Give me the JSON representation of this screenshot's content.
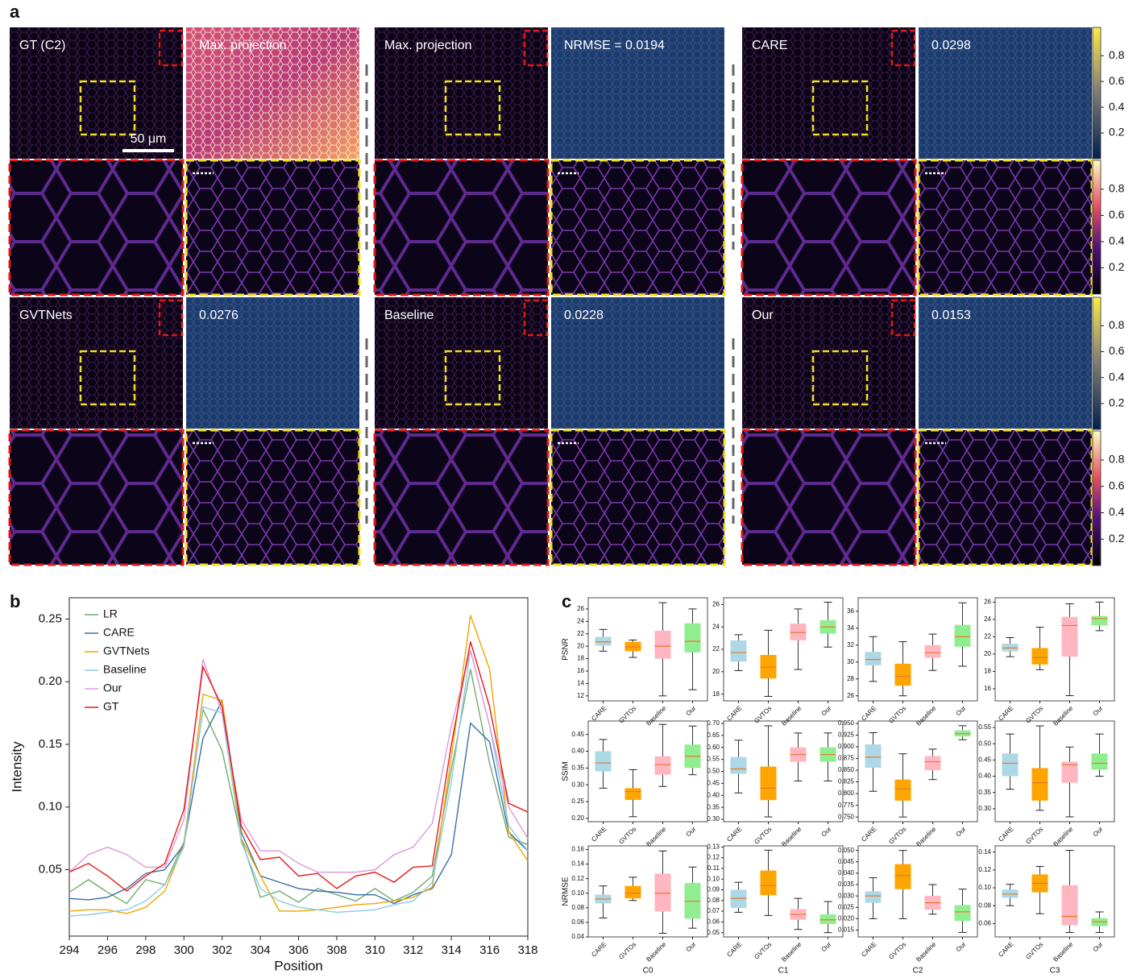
{
  "panel_labels": [
    "a",
    "b",
    "c"
  ],
  "panel_a": {
    "panels": [
      {
        "left": "GT (C2)",
        "right": "Max. projection"
      },
      {
        "left": "Max. projection",
        "right": "NRMSE = 0.0194"
      },
      {
        "left": "CARE",
        "right": "0.0298"
      },
      {
        "left": "GVTNets",
        "right": "0.0276"
      },
      {
        "left": "Baseline",
        "right": "0.0228"
      },
      {
        "left": "Our",
        "right": "0.0153"
      }
    ],
    "scale_bar": "50 μm",
    "colorbars": [
      {
        "cmap": "cividis",
        "lim": [
          0,
          1.02
        ],
        "ticks": [
          0.2,
          0.4,
          0.6,
          0.8
        ]
      },
      {
        "cmap": "magma",
        "lim": [
          0,
          1.02
        ],
        "ticks": [
          0.2,
          0.4,
          0.6,
          0.8
        ]
      },
      {
        "cmap": "cividis",
        "lim": [
          0,
          1.02
        ],
        "ticks": [
          0.2,
          0.4,
          0.6,
          0.8
        ]
      },
      {
        "cmap": "magma",
        "lim": [
          0,
          1.02
        ],
        "ticks": [
          0.2,
          0.4,
          0.6,
          0.8
        ]
      }
    ]
  },
  "chart_data": [
    {
      "type": "line",
      "x": [
        294,
        295,
        296,
        297,
        298,
        299,
        300,
        301,
        302,
        303,
        304,
        305,
        306,
        307,
        308,
        309,
        310,
        311,
        312,
        313,
        314,
        315,
        316,
        317,
        318
      ],
      "xlim": [
        294,
        318
      ],
      "xticks": [
        294,
        296,
        298,
        300,
        302,
        304,
        306,
        308,
        310,
        312,
        314,
        316,
        318
      ],
      "ylim": [
        -0.003,
        0.267
      ],
      "yticks": [
        0.05,
        {
          "value": 0.1,
          "label": "0.10"
        },
        0.15,
        {
          "value": 0.2,
          "label": "0.20"
        },
        0.25
      ],
      "xlabel": "Position",
      "ylabel": "Intensity",
      "legend": "upper left",
      "series": [
        {
          "name": "LR",
          "color": "#6fae6f",
          "values": [
            0.032,
            0.042,
            0.032,
            0.023,
            0.042,
            0.038,
            0.072,
            0.178,
            0.145,
            0.075,
            0.028,
            0.033,
            0.024,
            0.035,
            0.03,
            0.025,
            0.035,
            0.025,
            0.032,
            0.045,
            0.13,
            0.21,
            0.135,
            0.076,
            0.07
          ]
        },
        {
          "name": "CARE",
          "color": "#3a6fa8",
          "values": [
            0.027,
            0.026,
            0.028,
            0.035,
            0.047,
            0.05,
            0.07,
            0.155,
            0.185,
            0.08,
            0.045,
            0.04,
            0.035,
            0.033,
            0.032,
            0.03,
            0.03,
            0.023,
            0.03,
            0.035,
            0.062,
            0.167,
            0.152,
            0.08,
            0.065
          ]
        },
        {
          "name": "GVTNets",
          "color": "#f0a500",
          "values": [
            0.017,
            0.018,
            0.018,
            0.015,
            0.02,
            0.033,
            0.07,
            0.19,
            0.185,
            0.075,
            0.045,
            0.017,
            0.017,
            0.018,
            0.02,
            0.022,
            0.023,
            0.025,
            0.028,
            0.036,
            0.14,
            0.253,
            0.21,
            0.08,
            0.057
          ]
        },
        {
          "name": "Baseline",
          "color": "#8ecae6",
          "values": [
            0.013,
            0.014,
            0.016,
            0.018,
            0.025,
            0.038,
            0.068,
            0.18,
            0.175,
            0.072,
            0.035,
            0.025,
            0.02,
            0.018,
            0.016,
            0.017,
            0.018,
            0.022,
            0.025,
            0.04,
            0.12,
            0.225,
            0.165,
            0.085,
            0.065
          ]
        },
        {
          "name": "Our",
          "color": "#dd99dd",
          "values": [
            0.048,
            0.062,
            0.068,
            0.062,
            0.052,
            0.052,
            0.09,
            0.218,
            0.175,
            0.09,
            0.065,
            0.065,
            0.055,
            0.048,
            0.048,
            0.048,
            0.05,
            0.062,
            0.068,
            0.087,
            0.165,
            0.225,
            0.165,
            0.1,
            0.075
          ]
        },
        {
          "name": "GT",
          "color": "#e81818",
          "values": [
            0.048,
            0.055,
            0.045,
            0.033,
            0.045,
            0.055,
            0.098,
            0.212,
            0.18,
            0.085,
            0.058,
            0.06,
            0.045,
            0.047,
            0.035,
            0.045,
            0.048,
            0.04,
            0.052,
            0.053,
            0.15,
            0.232,
            0.18,
            0.103,
            0.096
          ]
        }
      ]
    },
    {
      "type": "box",
      "ylabel": "PSNR",
      "categories": [
        "CARE",
        "GVTOs",
        "Baseline",
        "Our"
      ],
      "colors": [
        "#add8e6",
        "#ffa500",
        "#ffb6c1",
        "#90ee90"
      ],
      "median_color": "#e8772e",
      "ylim": [
        11.2,
        27.8
      ],
      "yticks": [
        12,
        14,
        16,
        18,
        20,
        22,
        24,
        26
      ],
      "boxes": [
        {
          "low": 19.2,
          "q1": 20.1,
          "median": 20.7,
          "q3": 21.5,
          "high": 22.7
        },
        {
          "low": 18.2,
          "q1": 19.2,
          "median": 19.9,
          "q3": 20.7,
          "high": 21.0
        },
        {
          "low": 12,
          "q1": 18,
          "median": 20,
          "q3": 22.5,
          "high": 27
        },
        {
          "low": 13,
          "q1": 19,
          "median": 20.8,
          "q3": 23.7,
          "high": 26
        }
      ]
    },
    {
      "type": "box",
      "categories": [
        "CARE",
        "GVTOs",
        "Baseline",
        "Our"
      ],
      "colors": [
        "#add8e6",
        "#ffa500",
        "#ffb6c1",
        "#90ee90"
      ],
      "median_color": "#e8772e",
      "ylim": [
        17.4,
        26.6
      ],
      "yticks": [
        18,
        20,
        22,
        24,
        26
      ],
      "boxes": [
        {
          "low": 20.1,
          "q1": 20.9,
          "median": 21.7,
          "q3": 22.8,
          "high": 23.3
        },
        {
          "low": 17.8,
          "q1": 19.4,
          "median": 20.4,
          "q3": 21.5,
          "high": 23.7
        },
        {
          "low": 20.2,
          "q1": 22.8,
          "median": 23.5,
          "q3": 24.3,
          "high": 25.6
        },
        {
          "low": 22.2,
          "q1": 23.4,
          "median": 24.0,
          "q3": 24.6,
          "high": 26.2
        }
      ]
    },
    {
      "type": "box",
      "categories": [
        "CARE",
        "GVTOs",
        "Baseline",
        "Our"
      ],
      "colors": [
        "#add8e6",
        "#ffa500",
        "#ffb6c1",
        "#90ee90"
      ],
      "median_color": "#e8772e",
      "ylim": [
        25.4,
        37.6
      ],
      "yticks": [
        26,
        28,
        30,
        32,
        34,
        36
      ],
      "boxes": [
        {
          "low": 27.7,
          "q1": 29.6,
          "median": 30.3,
          "q3": 31.2,
          "high": 33.0
        },
        {
          "low": 26.0,
          "q1": 27.2,
          "median": 28.3,
          "q3": 29.8,
          "high": 32.4
        },
        {
          "low": 29.0,
          "q1": 30.5,
          "median": 31.1,
          "q3": 32.0,
          "high": 33.3
        },
        {
          "low": 29.5,
          "q1": 31.8,
          "median": 33.0,
          "q3": 34.4,
          "high": 37.0
        }
      ]
    },
    {
      "type": "box",
      "categories": [
        "CARE",
        "GVTOs",
        "Baseline",
        "Our"
      ],
      "colors": [
        "#add8e6",
        "#ffa500",
        "#ffb6c1",
        "#90ee90"
      ],
      "median_color": "#e8772e",
      "ylim": [
        14.6,
        26.5
      ],
      "yticks": [
        16,
        18,
        20,
        22,
        24,
        26
      ],
      "boxes": [
        {
          "low": 19.7,
          "q1": 20.3,
          "median": 20.7,
          "q3": 21.2,
          "high": 21.9
        },
        {
          "low": 18.2,
          "q1": 18.8,
          "median": 19.6,
          "q3": 20.7,
          "high": 23.1
        },
        {
          "low": 15.2,
          "q1": 19.7,
          "median": 23.3,
          "q3": 24.3,
          "high": 25.8
        },
        {
          "low": 22.7,
          "q1": 23.3,
          "median": 24.1,
          "q3": 24.4,
          "high": 26.0
        }
      ]
    },
    {
      "type": "box",
      "ylabel": "SSIM",
      "categories": [
        "CARE",
        "GVTOs",
        "Baseline",
        "Our"
      ],
      "colors": [
        "#add8e6",
        "#ffa500",
        "#ffb6c1",
        "#90ee90"
      ],
      "median_color": "#e8772e",
      "ylim": [
        0.19,
        0.49
      ],
      "yticks": [
        {
          "value": 0.2,
          "label": "0.20"
        },
        0.25,
        {
          "value": 0.3,
          "label": "0.30"
        },
        0.35,
        {
          "value": 0.4,
          "label": "0.40"
        },
        0.45
      ],
      "boxes": [
        {
          "low": 0.29,
          "q1": 0.34,
          "median": 0.365,
          "q3": 0.4,
          "high": 0.435
        },
        {
          "low": 0.205,
          "q1": 0.255,
          "median": 0.28,
          "q3": 0.29,
          "high": 0.345
        },
        {
          "low": 0.295,
          "q1": 0.33,
          "median": 0.36,
          "q3": 0.385,
          "high": 0.48
        },
        {
          "low": 0.33,
          "q1": 0.35,
          "median": 0.385,
          "q3": 0.42,
          "high": 0.475
        }
      ]
    },
    {
      "type": "box",
      "categories": [
        "CARE",
        "GVTOs",
        "Baseline",
        "Our"
      ],
      "colors": [
        "#add8e6",
        "#ffa500",
        "#ffb6c1",
        "#90ee90"
      ],
      "median_color": "#e8772e",
      "ylim": [
        0.29,
        0.71
      ],
      "yticks": [
        {
          "value": 0.3,
          "label": "0.30"
        },
        0.35,
        {
          "value": 0.4,
          "label": "0.40"
        },
        0.45,
        {
          "value": 0.5,
          "label": "0.50"
        },
        0.55,
        {
          "value": 0.6,
          "label": "0.60"
        },
        0.65,
        {
          "value": 0.7,
          "label": "0.70"
        }
      ],
      "boxes": [
        {
          "low": 0.41,
          "q1": 0.49,
          "median": 0.51,
          "q3": 0.56,
          "high": 0.63
        },
        {
          "low": 0.31,
          "q1": 0.38,
          "median": 0.43,
          "q3": 0.52,
          "high": 0.69
        },
        {
          "low": 0.46,
          "q1": 0.54,
          "median": 0.57,
          "q3": 0.6,
          "high": 0.66
        },
        {
          "low": 0.46,
          "q1": 0.54,
          "median": 0.57,
          "q3": 0.6,
          "high": 0.66
        }
      ]
    },
    {
      "type": "box",
      "categories": [
        "CARE",
        "GVTOs",
        "Baseline",
        "Our"
      ],
      "colors": [
        "#add8e6",
        "#ffa500",
        "#ffb6c1",
        "#90ee90"
      ],
      "median_color": "#e8772e",
      "ylim": [
        0.74,
        0.955
      ],
      "yticks": [
        {
          "value": 0.75,
          "label": "0.750"
        },
        {
          "value": 0.775,
          "label": "0.775"
        },
        {
          "value": 0.8,
          "label": "0.800"
        },
        {
          "value": 0.825,
          "label": "0.825"
        },
        {
          "value": 0.85,
          "label": "0.850"
        },
        {
          "value": 0.875,
          "label": "0.875"
        },
        {
          "value": 0.9,
          "label": "0.900"
        },
        {
          "value": 0.925,
          "label": "0.925"
        },
        {
          "value": 0.95,
          "label": "0.950"
        }
      ],
      "boxes": [
        {
          "low": 0.805,
          "q1": 0.855,
          "median": 0.878,
          "q3": 0.905,
          "high": 0.93
        },
        {
          "low": 0.75,
          "q1": 0.785,
          "median": 0.81,
          "q3": 0.83,
          "high": 0.885
        },
        {
          "low": 0.83,
          "q1": 0.85,
          "median": 0.868,
          "q3": 0.88,
          "high": 0.895
        },
        {
          "low": 0.915,
          "q1": 0.922,
          "median": 0.928,
          "q3": 0.935,
          "high": 0.945
        }
      ]
    },
    {
      "type": "box",
      "categories": [
        "CARE",
        "GVTOs",
        "Baseline",
        "Our"
      ],
      "colors": [
        "#add8e6",
        "#ffa500",
        "#ffb6c1",
        "#90ee90"
      ],
      "median_color": "#e8772e",
      "ylim": [
        0.26,
        0.57
      ],
      "yticks": [
        {
          "value": 0.3,
          "label": "0.30"
        },
        0.35,
        {
          "value": 0.4,
          "label": "0.40"
        },
        0.45,
        {
          "value": 0.5,
          "label": "0.50"
        },
        0.55
      ],
      "boxes": [
        {
          "low": 0.36,
          "q1": 0.4,
          "median": 0.44,
          "q3": 0.47,
          "high": 0.53
        },
        {
          "low": 0.295,
          "q1": 0.325,
          "median": 0.38,
          "q3": 0.425,
          "high": 0.555
        },
        {
          "low": 0.275,
          "q1": 0.38,
          "median": 0.435,
          "q3": 0.445,
          "high": 0.49
        },
        {
          "low": 0.4,
          "q1": 0.42,
          "median": 0.44,
          "q3": 0.47,
          "high": 0.53
        }
      ]
    },
    {
      "type": "box",
      "ylabel": "NRMSE",
      "xlabel": "C0",
      "categories": [
        "CARE",
        "GVTOs",
        "Baseline",
        "Our"
      ],
      "colors": [
        "#add8e6",
        "#ffa500",
        "#ffb6c1",
        "#90ee90"
      ],
      "median_color": "#e8772e",
      "ylim": [
        0.04,
        0.165
      ],
      "yticks": [
        0.04,
        0.06,
        0.08,
        {
          "value": 0.1,
          "label": "0.10"
        },
        0.12,
        0.14,
        0.16
      ],
      "boxes": [
        {
          "low": 0.066,
          "q1": 0.086,
          "median": 0.092,
          "q3": 0.098,
          "high": 0.11
        },
        {
          "low": 0.09,
          "q1": 0.093,
          "median": 0.1,
          "q3": 0.11,
          "high": 0.122
        },
        {
          "low": 0.045,
          "q1": 0.075,
          "median": 0.1,
          "q3": 0.127,
          "high": 0.158
        },
        {
          "low": 0.052,
          "q1": 0.065,
          "median": 0.089,
          "q3": 0.114,
          "high": 0.136
        }
      ]
    },
    {
      "type": "box",
      "xlabel": "C1",
      "categories": [
        "CARE",
        "GVTOs",
        "Baseline",
        "Our"
      ],
      "colors": [
        "#add8e6",
        "#ffa500",
        "#ffb6c1",
        "#90ee90"
      ],
      "median_color": "#e8772e",
      "ylim": [
        0.046,
        0.131
      ],
      "yticks": [
        0.05,
        0.06,
        0.07,
        0.08,
        0.09,
        {
          "value": 0.1,
          "label": "0.10"
        },
        0.11,
        0.12,
        0.13
      ],
      "boxes": [
        {
          "low": 0.069,
          "q1": 0.073,
          "median": 0.082,
          "q3": 0.09,
          "high": 0.097
        },
        {
          "low": 0.066,
          "q1": 0.085,
          "median": 0.094,
          "q3": 0.108,
          "high": 0.127
        },
        {
          "low": 0.053,
          "q1": 0.062,
          "median": 0.067,
          "q3": 0.072,
          "high": 0.082
        },
        {
          "low": 0.05,
          "q1": 0.058,
          "median": 0.062,
          "q3": 0.067,
          "high": 0.079
        }
      ]
    },
    {
      "type": "box",
      "xlabel": "C2",
      "categories": [
        "CARE",
        "GVTOs",
        "Baseline",
        "Our"
      ],
      "colors": [
        "#add8e6",
        "#ffa500",
        "#ffb6c1",
        "#90ee90"
      ],
      "median_color": "#e8772e",
      "ylim": [
        0.012,
        0.052
      ],
      "yticks": [
        0.015,
        {
          "value": 0.02,
          "label": "0.020"
        },
        0.025,
        {
          "value": 0.03,
          "label": "0.030"
        },
        0.035,
        {
          "value": 0.04,
          "label": "0.040"
        },
        0.045,
        {
          "value": 0.05,
          "label": "0.050"
        }
      ],
      "boxes": [
        {
          "low": 0.02,
          "q1": 0.027,
          "median": 0.03,
          "q3": 0.032,
          "high": 0.038
        },
        {
          "low": 0.02,
          "q1": 0.033,
          "median": 0.039,
          "q3": 0.044,
          "high": 0.05
        },
        {
          "low": 0.022,
          "q1": 0.024,
          "median": 0.027,
          "q3": 0.03,
          "high": 0.035
        },
        {
          "low": 0.014,
          "q1": 0.019,
          "median": 0.023,
          "q3": 0.026,
          "high": 0.033
        }
      ]
    },
    {
      "type": "box",
      "xlabel": "C3",
      "categories": [
        "CARE",
        "GVTOs",
        "Baseline",
        "Our"
      ],
      "colors": [
        "#add8e6",
        "#ffa500",
        "#ffb6c1",
        "#90ee90"
      ],
      "median_color": "#e8772e",
      "ylim": [
        0.045,
        0.147
      ],
      "yticks": [
        0.06,
        0.08,
        {
          "value": 0.1,
          "label": "0.10"
        },
        0.12,
        0.14
      ],
      "boxes": [
        {
          "low": 0.08,
          "q1": 0.089,
          "median": 0.093,
          "q3": 0.098,
          "high": 0.104
        },
        {
          "low": 0.071,
          "q1": 0.095,
          "median": 0.105,
          "q3": 0.115,
          "high": 0.124
        },
        {
          "low": 0.05,
          "q1": 0.058,
          "median": 0.068,
          "q3": 0.103,
          "high": 0.142
        },
        {
          "low": 0.05,
          "q1": 0.057,
          "median": 0.062,
          "q3": 0.066,
          "high": 0.073
        }
      ]
    }
  ]
}
